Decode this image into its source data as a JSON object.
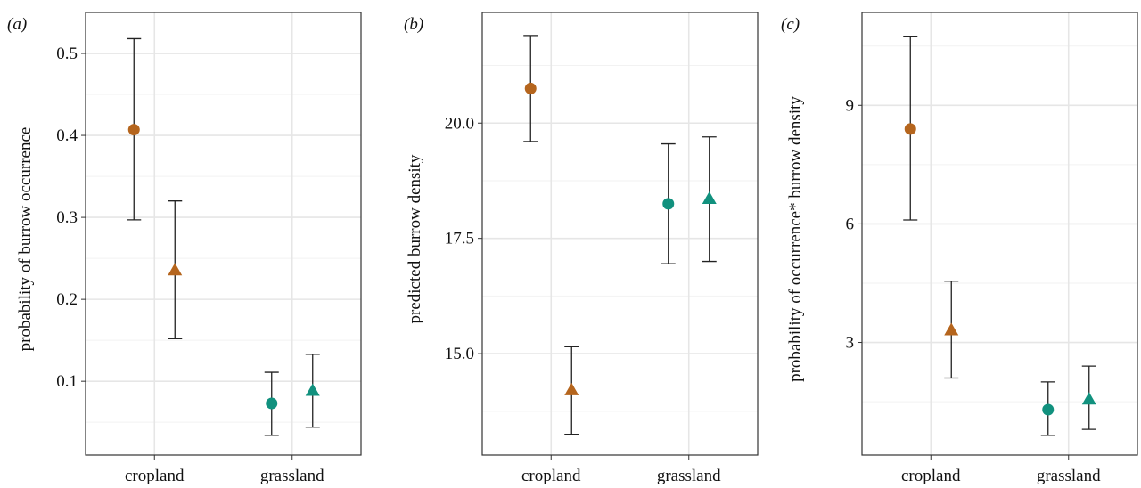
{
  "figure": {
    "colors": {
      "cropland": "#b5651d",
      "grassland": "#11917e",
      "errorbar": "#222222",
      "grid_major": "#e6e6e6",
      "grid_minor": "#f2f2f2",
      "frame": "#333333"
    }
  },
  "chart_data": [
    {
      "type": "scatter",
      "panel_label": "(a)",
      "xlabel": "",
      "ylabel": "probability of burrow occurrence",
      "categories": [
        "cropland",
        "grassland"
      ],
      "ylim": [
        0.01,
        0.55
      ],
      "yticks": [
        0.1,
        0.2,
        0.3,
        0.4,
        0.5
      ],
      "ytick_labels": [
        "0.1",
        "0.2",
        "0.3",
        "0.4",
        "0.5"
      ],
      "grid": true,
      "series": [
        {
          "marker": "circle",
          "points": [
            {
              "category": "cropland",
              "y": 0.407,
              "lower": 0.297,
              "upper": 0.518
            },
            {
              "category": "grassland",
              "y": 0.073,
              "lower": 0.034,
              "upper": 0.111
            }
          ]
        },
        {
          "marker": "triangle",
          "points": [
            {
              "category": "cropland",
              "y": 0.235,
              "lower": 0.152,
              "upper": 0.32
            },
            {
              "category": "grassland",
              "y": 0.088,
              "lower": 0.044,
              "upper": 0.133
            }
          ]
        }
      ]
    },
    {
      "type": "scatter",
      "panel_label": "(b)",
      "xlabel": "",
      "ylabel": "predicted burrow density",
      "categories": [
        "cropland",
        "grassland"
      ],
      "ylim": [
        12.8,
        22.4
      ],
      "yticks": [
        15.0,
        17.5,
        20.0
      ],
      "ytick_labels": [
        "15.0",
        "17.5",
        "20.0"
      ],
      "grid": true,
      "series": [
        {
          "marker": "circle",
          "points": [
            {
              "category": "cropland",
              "y": 20.75,
              "lower": 19.6,
              "upper": 21.9
            },
            {
              "category": "grassland",
              "y": 18.25,
              "lower": 16.95,
              "upper": 19.55
            }
          ]
        },
        {
          "marker": "triangle",
          "points": [
            {
              "category": "cropland",
              "y": 14.2,
              "lower": 13.25,
              "upper": 15.15
            },
            {
              "category": "grassland",
              "y": 18.35,
              "lower": 17.0,
              "upper": 19.7
            }
          ]
        }
      ]
    },
    {
      "type": "scatter",
      "panel_label": "(c)",
      "xlabel": "",
      "ylabel": "probability of occurrence* burrow density",
      "categories": [
        "cropland",
        "grassland"
      ],
      "ylim": [
        0.15,
        11.35
      ],
      "yticks": [
        3,
        6,
        9
      ],
      "ytick_labels": [
        "3",
        "6",
        "9"
      ],
      "grid": true,
      "series": [
        {
          "marker": "circle",
          "points": [
            {
              "category": "cropland",
              "y": 8.4,
              "lower": 6.1,
              "upper": 10.75
            },
            {
              "category": "grassland",
              "y": 1.3,
              "lower": 0.65,
              "upper": 2.0
            }
          ]
        },
        {
          "marker": "triangle",
          "points": [
            {
              "category": "cropland",
              "y": 3.3,
              "lower": 2.1,
              "upper": 4.55
            },
            {
              "category": "grassland",
              "y": 1.55,
              "lower": 0.8,
              "upper": 2.4
            }
          ]
        }
      ]
    }
  ]
}
